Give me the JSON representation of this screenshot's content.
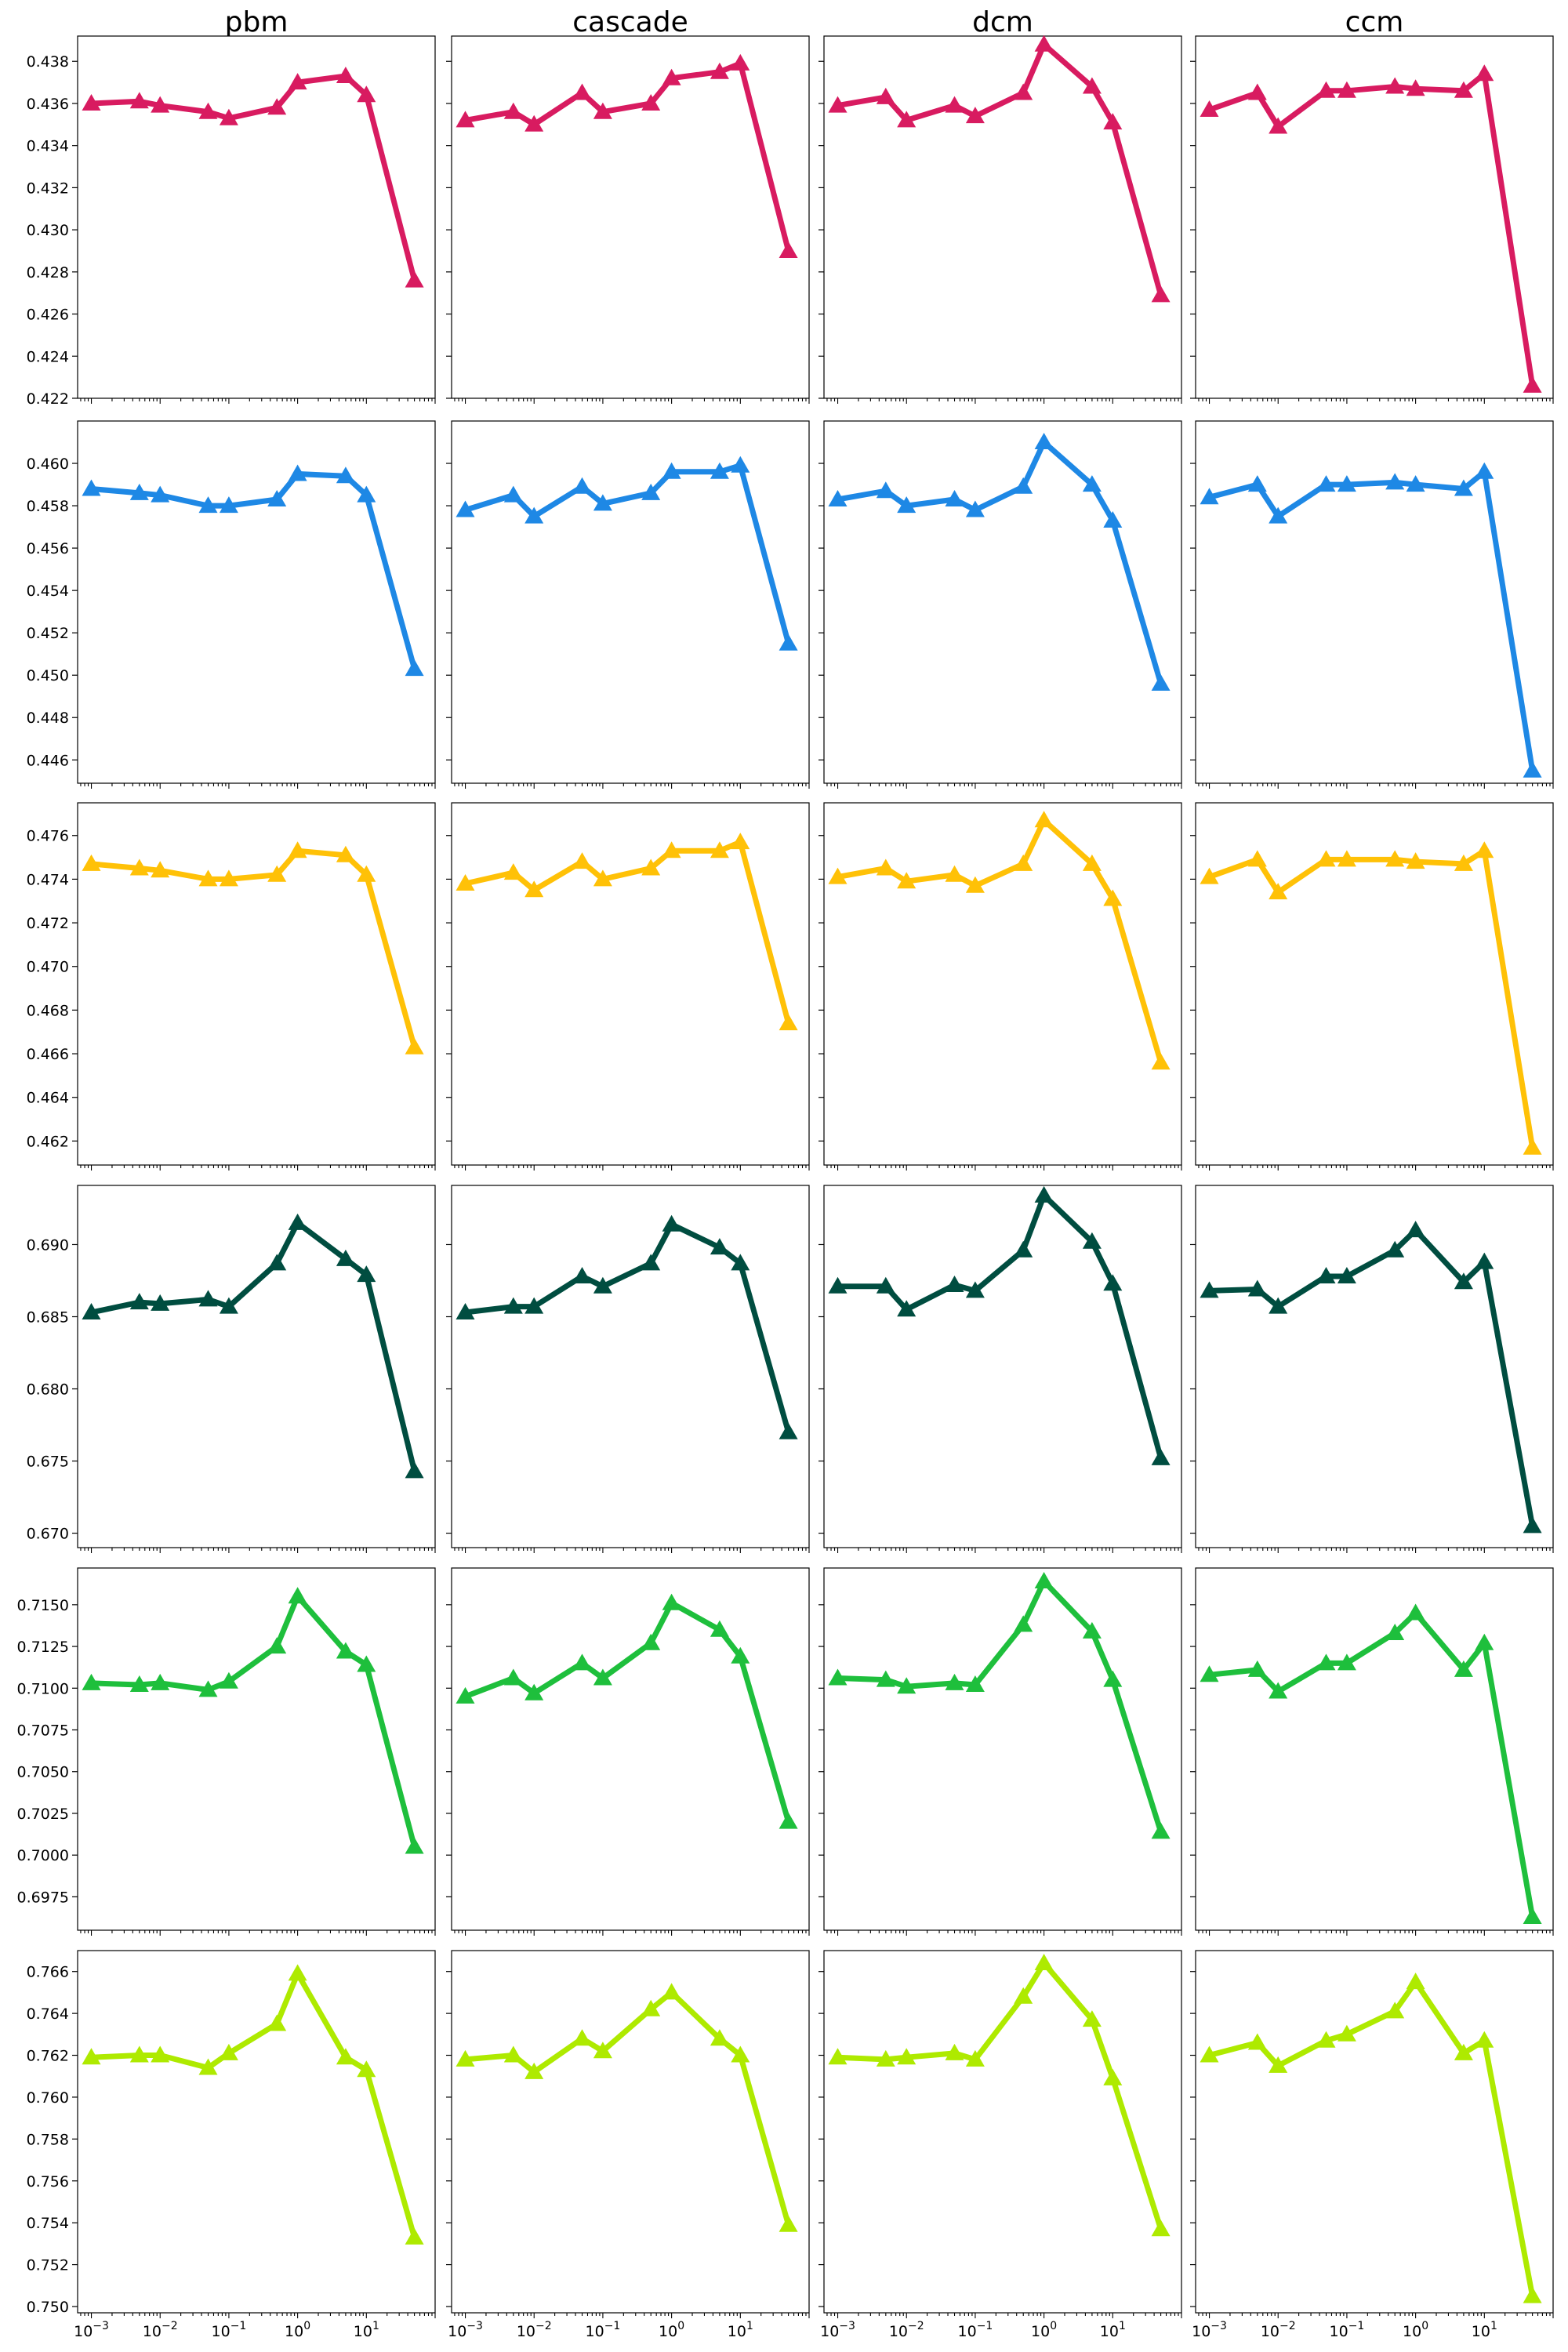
{
  "columns": [
    "pbm",
    "cascade",
    "dcm",
    "ccm"
  ],
  "x_values": [
    0.001,
    0.005,
    0.01,
    0.05,
    0.1,
    0.5,
    1,
    5,
    10,
    50
  ],
  "x_tick_labels": [
    "10^-3",
    "10^-2",
    "10^-1",
    "10^0",
    "10^1"
  ],
  "row_colors": [
    "#d81b60",
    "#1e88e5",
    "#ffc107",
    "#004d40",
    "#1ebf3c",
    "#aeea00"
  ],
  "chart_data": [
    {
      "type": "line",
      "row": 0,
      "column": "pbm",
      "xscale": "log",
      "ylim": [
        0.422,
        0.4392
      ],
      "yticks": [
        0.422,
        0.424,
        0.426,
        0.428,
        0.43,
        0.432,
        0.434,
        0.436,
        0.438
      ],
      "ytick_labels": [
        "0.422",
        "0.424",
        "0.426",
        "0.428",
        "0.430",
        "0.432",
        "0.434",
        "0.436",
        "0.438"
      ],
      "series": [
        {
          "color": "#d81b60",
          "marker": "triangle",
          "y": [
            0.436,
            0.4361,
            0.4359,
            0.4356,
            0.4353,
            0.4358,
            0.437,
            0.4373,
            0.4364,
            0.4276
          ]
        }
      ]
    },
    {
      "type": "line",
      "row": 0,
      "column": "cascade",
      "xscale": "log",
      "ylim": [
        0.422,
        0.4392
      ],
      "yticks": [
        0.422,
        0.424,
        0.426,
        0.428,
        0.43,
        0.432,
        0.434,
        0.436,
        0.438
      ],
      "ytick_labels": [
        "0.422",
        "0.424",
        "0.426",
        "0.428",
        "0.430",
        "0.432",
        "0.434",
        "0.436",
        "0.438"
      ],
      "series": [
        {
          "color": "#d81b60",
          "marker": "triangle",
          "y": [
            0.4352,
            0.4356,
            0.435,
            0.4365,
            0.4356,
            0.436,
            0.4372,
            0.4375,
            0.4379,
            0.429
          ]
        }
      ]
    },
    {
      "type": "line",
      "row": 0,
      "column": "dcm",
      "xscale": "log",
      "ylim": [
        0.422,
        0.4392
      ],
      "yticks": [
        0.422,
        0.424,
        0.426,
        0.428,
        0.43,
        0.432,
        0.434,
        0.436,
        0.438
      ],
      "ytick_labels": [
        "0.422",
        "0.424",
        "0.426",
        "0.428",
        "0.430",
        "0.432",
        "0.434",
        "0.436",
        "0.438"
      ],
      "series": [
        {
          "color": "#d81b60",
          "marker": "triangle",
          "y": [
            0.4359,
            0.4363,
            0.4352,
            0.4359,
            0.4354,
            0.4365,
            0.4388,
            0.4368,
            0.4351,
            0.4269
          ]
        }
      ]
    },
    {
      "type": "line",
      "row": 0,
      "column": "ccm",
      "xscale": "log",
      "ylim": [
        0.422,
        0.4392
      ],
      "yticks": [
        0.422,
        0.424,
        0.426,
        0.428,
        0.43,
        0.432,
        0.434,
        0.436,
        0.438
      ],
      "ytick_labels": [
        "0.422",
        "0.424",
        "0.426",
        "0.428",
        "0.430",
        "0.432",
        "0.434",
        "0.436",
        "0.438"
      ],
      "series": [
        {
          "color": "#d81b60",
          "marker": "triangle",
          "y": [
            0.4357,
            0.4365,
            0.4349,
            0.4366,
            0.4366,
            0.4368,
            0.4367,
            0.4366,
            0.4374,
            0.4226
          ]
        }
      ]
    },
    {
      "type": "line",
      "row": 1,
      "column": "pbm",
      "xscale": "log",
      "ylim": [
        0.4449,
        0.462
      ],
      "yticks": [
        0.446,
        0.448,
        0.45,
        0.452,
        0.454,
        0.456,
        0.458,
        0.46
      ],
      "ytick_labels": [
        "0.446",
        "0.448",
        "0.450",
        "0.452",
        "0.454",
        "0.456",
        "0.458",
        "0.460"
      ],
      "series": [
        {
          "color": "#1e88e5",
          "marker": "triangle",
          "y": [
            0.4588,
            0.4586,
            0.4585,
            0.458,
            0.458,
            0.4583,
            0.4595,
            0.4594,
            0.4585,
            0.4503
          ]
        }
      ]
    },
    {
      "type": "line",
      "row": 1,
      "column": "cascade",
      "xscale": "log",
      "ylim": [
        0.4449,
        0.462
      ],
      "yticks": [
        0.446,
        0.448,
        0.45,
        0.452,
        0.454,
        0.456,
        0.458,
        0.46
      ],
      "ytick_labels": [
        "0.446",
        "0.448",
        "0.450",
        "0.452",
        "0.454",
        "0.456",
        "0.458",
        "0.460"
      ],
      "series": [
        {
          "color": "#1e88e5",
          "marker": "triangle",
          "y": [
            0.4578,
            0.4585,
            0.4575,
            0.4589,
            0.4581,
            0.4586,
            0.4596,
            0.4596,
            0.4599,
            0.4515
          ]
        }
      ]
    },
    {
      "type": "line",
      "row": 1,
      "column": "dcm",
      "xscale": "log",
      "ylim": [
        0.4449,
        0.462
      ],
      "yticks": [
        0.446,
        0.448,
        0.45,
        0.452,
        0.454,
        0.456,
        0.458,
        0.46
      ],
      "ytick_labels": [
        "0.446",
        "0.448",
        "0.450",
        "0.452",
        "0.454",
        "0.456",
        "0.458",
        "0.460"
      ],
      "series": [
        {
          "color": "#1e88e5",
          "marker": "triangle",
          "y": [
            0.4583,
            0.4587,
            0.458,
            0.4583,
            0.4578,
            0.4589,
            0.461,
            0.459,
            0.4573,
            0.4496
          ]
        }
      ]
    },
    {
      "type": "line",
      "row": 1,
      "column": "ccm",
      "xscale": "log",
      "ylim": [
        0.4449,
        0.462
      ],
      "yticks": [
        0.446,
        0.448,
        0.45,
        0.452,
        0.454,
        0.456,
        0.458,
        0.46
      ],
      "ytick_labels": [
        "0.446",
        "0.448",
        "0.450",
        "0.452",
        "0.454",
        "0.456",
        "0.458",
        "0.460"
      ],
      "series": [
        {
          "color": "#1e88e5",
          "marker": "triangle",
          "y": [
            0.4584,
            0.459,
            0.4575,
            0.459,
            0.459,
            0.4591,
            0.459,
            0.4588,
            0.4596,
            0.4455
          ]
        }
      ]
    },
    {
      "type": "line",
      "row": 2,
      "column": "pbm",
      "xscale": "log",
      "ylim": [
        0.4609,
        0.4775
      ],
      "yticks": [
        0.462,
        0.464,
        0.466,
        0.468,
        0.47,
        0.472,
        0.474,
        0.476
      ],
      "ytick_labels": [
        "0.462",
        "0.464",
        "0.466",
        "0.468",
        "0.470",
        "0.472",
        "0.474",
        "0.476"
      ],
      "series": [
        {
          "color": "#ffc107",
          "marker": "triangle",
          "y": [
            0.4747,
            0.4745,
            0.4744,
            0.474,
            0.474,
            0.4742,
            0.4753,
            0.4751,
            0.4742,
            0.4663
          ]
        }
      ]
    },
    {
      "type": "line",
      "row": 2,
      "column": "cascade",
      "xscale": "log",
      "ylim": [
        0.4609,
        0.4775
      ],
      "yticks": [
        0.462,
        0.464,
        0.466,
        0.468,
        0.47,
        0.472,
        0.474,
        0.476
      ],
      "ytick_labels": [
        "0.462",
        "0.464",
        "0.466",
        "0.468",
        "0.470",
        "0.472",
        "0.474",
        "0.476"
      ],
      "series": [
        {
          "color": "#ffc107",
          "marker": "triangle",
          "y": [
            0.4738,
            0.4743,
            0.4735,
            0.4748,
            0.474,
            0.4745,
            0.4753,
            0.4753,
            0.4757,
            0.4674
          ]
        }
      ]
    },
    {
      "type": "line",
      "row": 2,
      "column": "dcm",
      "xscale": "log",
      "ylim": [
        0.4609,
        0.4775
      ],
      "yticks": [
        0.462,
        0.464,
        0.466,
        0.468,
        0.47,
        0.472,
        0.474,
        0.476
      ],
      "ytick_labels": [
        "0.462",
        "0.464",
        "0.466",
        "0.468",
        "0.470",
        "0.472",
        "0.474",
        "0.476"
      ],
      "series": [
        {
          "color": "#ffc107",
          "marker": "triangle",
          "y": [
            0.4741,
            0.4745,
            0.4739,
            0.4742,
            0.4737,
            0.4747,
            0.4767,
            0.4747,
            0.4731,
            0.4656
          ]
        }
      ]
    },
    {
      "type": "line",
      "row": 2,
      "column": "ccm",
      "xscale": "log",
      "ylim": [
        0.4609,
        0.4775
      ],
      "yticks": [
        0.462,
        0.464,
        0.466,
        0.468,
        0.47,
        0.472,
        0.474,
        0.476
      ],
      "ytick_labels": [
        "0.462",
        "0.464",
        "0.466",
        "0.468",
        "0.470",
        "0.472",
        "0.474",
        "0.476"
      ],
      "series": [
        {
          "color": "#ffc107",
          "marker": "triangle",
          "y": [
            0.4741,
            0.4749,
            0.4734,
            0.4749,
            0.4749,
            0.4749,
            0.4748,
            0.4747,
            0.4753,
            0.4617
          ]
        }
      ]
    },
    {
      "type": "line",
      "row": 3,
      "column": "pbm",
      "xscale": "log",
      "ylim": [
        0.669,
        0.6941
      ],
      "yticks": [
        0.67,
        0.675,
        0.68,
        0.685,
        0.69
      ],
      "ytick_labels": [
        "0.670",
        "0.675",
        "0.680",
        "0.685",
        "0.690"
      ],
      "series": [
        {
          "color": "#004d40",
          "marker": "triangle",
          "y": [
            0.6853,
            0.686,
            0.6859,
            0.6862,
            0.6857,
            0.6887,
            0.6915,
            0.689,
            0.6879,
            0.6743
          ]
        }
      ]
    },
    {
      "type": "line",
      "row": 3,
      "column": "cascade",
      "xscale": "log",
      "ylim": [
        0.669,
        0.6941
      ],
      "yticks": [
        0.67,
        0.675,
        0.68,
        0.685,
        0.69
      ],
      "ytick_labels": [
        "0.670",
        "0.675",
        "0.680",
        "0.685",
        "0.690"
      ],
      "series": [
        {
          "color": "#004d40",
          "marker": "triangle",
          "y": [
            0.6853,
            0.6857,
            0.6857,
            0.6878,
            0.6871,
            0.6887,
            0.6914,
            0.6898,
            0.6887,
            0.677
          ]
        }
      ]
    },
    {
      "type": "line",
      "row": 3,
      "column": "dcm",
      "xscale": "log",
      "ylim": [
        0.669,
        0.6941
      ],
      "yticks": [
        0.67,
        0.675,
        0.68,
        0.685,
        0.69
      ],
      "ytick_labels": [
        "0.670",
        "0.675",
        "0.680",
        "0.685",
        "0.690"
      ],
      "series": [
        {
          "color": "#004d40",
          "marker": "triangle",
          "y": [
            0.6871,
            0.6871,
            0.6855,
            0.6872,
            0.6868,
            0.6896,
            0.6934,
            0.6902,
            0.6873,
            0.6752
          ]
        }
      ]
    },
    {
      "type": "line",
      "row": 3,
      "column": "ccm",
      "xscale": "log",
      "ylim": [
        0.669,
        0.6941
      ],
      "yticks": [
        0.67,
        0.675,
        0.68,
        0.685,
        0.69
      ],
      "ytick_labels": [
        "0.670",
        "0.675",
        "0.680",
        "0.685",
        "0.690"
      ],
      "series": [
        {
          "color": "#004d40",
          "marker": "triangle",
          "y": [
            0.6868,
            0.6869,
            0.6857,
            0.6878,
            0.6878,
            0.6896,
            0.691,
            0.6874,
            0.6888,
            0.6705
          ]
        }
      ]
    },
    {
      "type": "line",
      "row": 4,
      "column": "pbm",
      "xscale": "log",
      "ylim": [
        0.6955,
        0.7172
      ],
      "yticks": [
        0.6975,
        0.7,
        0.7025,
        0.705,
        0.7075,
        0.71,
        0.7125,
        0.715
      ],
      "ytick_labels": [
        "0.6975",
        "0.7000",
        "0.7025",
        "0.7050",
        "0.7075",
        "0.7100",
        "0.7125",
        "0.7150"
      ],
      "series": [
        {
          "color": "#1ebf3c",
          "marker": "triangle",
          "y": [
            0.7103,
            0.7102,
            0.7103,
            0.7099,
            0.7104,
            0.7125,
            0.7155,
            0.7122,
            0.7114,
            0.7005
          ]
        }
      ]
    },
    {
      "type": "line",
      "row": 4,
      "column": "cascade",
      "xscale": "log",
      "ylim": [
        0.6955,
        0.7172
      ],
      "yticks": [
        0.6975,
        0.7,
        0.7025,
        0.705,
        0.7075,
        0.71,
        0.7125,
        0.715
      ],
      "ytick_labels": [
        "0.6975",
        "0.7000",
        "0.7025",
        "0.7050",
        "0.7075",
        "0.7100",
        "0.7125",
        "0.7150"
      ],
      "series": [
        {
          "color": "#1ebf3c",
          "marker": "triangle",
          "y": [
            0.7095,
            0.7106,
            0.7097,
            0.7115,
            0.7106,
            0.7127,
            0.7151,
            0.7135,
            0.7119,
            0.702
          ]
        }
      ]
    },
    {
      "type": "line",
      "row": 4,
      "column": "dcm",
      "xscale": "log",
      "ylim": [
        0.6955,
        0.7172
      ],
      "yticks": [
        0.6975,
        0.7,
        0.7025,
        0.705,
        0.7075,
        0.71,
        0.7125,
        0.715
      ],
      "ytick_labels": [
        "0.6975",
        "0.7000",
        "0.7025",
        "0.7050",
        "0.7075",
        "0.7100",
        "0.7125",
        "0.7150"
      ],
      "series": [
        {
          "color": "#1ebf3c",
          "marker": "triangle",
          "y": [
            0.7106,
            0.7105,
            0.7101,
            0.7103,
            0.7102,
            0.7138,
            0.7164,
            0.7134,
            0.7105,
            0.7014
          ]
        }
      ]
    },
    {
      "type": "line",
      "row": 4,
      "column": "ccm",
      "xscale": "log",
      "ylim": [
        0.6955,
        0.7172
      ],
      "yticks": [
        0.6975,
        0.7,
        0.7025,
        0.705,
        0.7075,
        0.71,
        0.7125,
        0.715
      ],
      "ytick_labels": [
        "0.6975",
        "0.7000",
        "0.7025",
        "0.7050",
        "0.7075",
        "0.7100",
        "0.7125",
        "0.7150"
      ],
      "series": [
        {
          "color": "#1ebf3c",
          "marker": "triangle",
          "y": [
            0.7108,
            0.7111,
            0.7098,
            0.7115,
            0.7115,
            0.7133,
            0.7145,
            0.7111,
            0.7127,
            0.6963
          ]
        }
      ]
    },
    {
      "type": "line",
      "row": 5,
      "column": "pbm",
      "xscale": "log",
      "ylim": [
        0.7497,
        0.767
      ],
      "yticks": [
        0.75,
        0.752,
        0.754,
        0.756,
        0.758,
        0.76,
        0.762,
        0.764,
        0.766
      ],
      "ytick_labels": [
        "0.750",
        "0.752",
        "0.754",
        "0.756",
        "0.758",
        "0.760",
        "0.762",
        "0.764",
        "0.766"
      ],
      "series": [
        {
          "color": "#aeea00",
          "marker": "triangle",
          "y": [
            0.7619,
            0.762,
            0.762,
            0.7614,
            0.7621,
            0.7635,
            0.7659,
            0.7619,
            0.7613,
            0.7533
          ]
        }
      ]
    },
    {
      "type": "line",
      "row": 5,
      "column": "cascade",
      "xscale": "log",
      "ylim": [
        0.7497,
        0.767
      ],
      "yticks": [
        0.75,
        0.752,
        0.754,
        0.756,
        0.758,
        0.76,
        0.762,
        0.764,
        0.766
      ],
      "ytick_labels": [
        "0.750",
        "0.752",
        "0.754",
        "0.756",
        "0.758",
        "0.760",
        "0.762",
        "0.764",
        "0.766"
      ],
      "series": [
        {
          "color": "#aeea00",
          "marker": "triangle",
          "y": [
            0.7618,
            0.762,
            0.7612,
            0.7628,
            0.7622,
            0.7642,
            0.765,
            0.7628,
            0.762,
            0.7539
          ]
        }
      ]
    },
    {
      "type": "line",
      "row": 5,
      "column": "dcm",
      "xscale": "log",
      "ylim": [
        0.7497,
        0.767
      ],
      "yticks": [
        0.75,
        0.752,
        0.754,
        0.756,
        0.758,
        0.76,
        0.762,
        0.764,
        0.766
      ],
      "ytick_labels": [
        "0.750",
        "0.752",
        "0.754",
        "0.756",
        "0.758",
        "0.760",
        "0.762",
        "0.764",
        "0.766"
      ],
      "series": [
        {
          "color": "#aeea00",
          "marker": "triangle",
          "y": [
            0.7619,
            0.7618,
            0.7619,
            0.7621,
            0.7618,
            0.7648,
            0.7664,
            0.7637,
            0.7609,
            0.7537
          ]
        }
      ]
    },
    {
      "type": "line",
      "row": 5,
      "column": "ccm",
      "xscale": "log",
      "ylim": [
        0.7497,
        0.767
      ],
      "yticks": [
        0.75,
        0.752,
        0.754,
        0.756,
        0.758,
        0.76,
        0.762,
        0.764,
        0.766
      ],
      "ytick_labels": [
        "0.750",
        "0.752",
        "0.754",
        "0.756",
        "0.758",
        "0.760",
        "0.762",
        "0.764",
        "0.766"
      ],
      "series": [
        {
          "color": "#aeea00",
          "marker": "triangle",
          "y": [
            0.762,
            0.7626,
            0.7615,
            0.7627,
            0.763,
            0.7641,
            0.7655,
            0.7621,
            0.7627,
            0.7505
          ]
        }
      ]
    }
  ]
}
